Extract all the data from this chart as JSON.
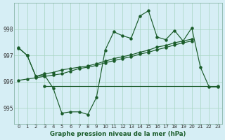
{
  "title": "Graphe pression niveau de la mer (hPa)",
  "bg_color": "#d6eef5",
  "grid_color": "#a8d5c2",
  "line_color": "#1a5c2a",
  "xlim": [
    -0.5,
    23.5
  ],
  "ylim": [
    994.4,
    999.0
  ],
  "yticks": [
    995,
    996,
    997,
    998
  ],
  "xtick_labels": [
    "0",
    "1",
    "2",
    "3",
    "4",
    "5",
    "6",
    "7",
    "8",
    "9",
    "10",
    "11",
    "12",
    "13",
    "14",
    "15",
    "16",
    "17",
    "18",
    "19",
    "20",
    "21",
    "22",
    "23"
  ],
  "main_line_x": [
    0,
    1,
    2,
    3,
    4,
    5,
    6,
    7,
    8,
    9,
    10,
    11,
    12,
    13,
    14,
    15,
    16,
    17,
    18,
    19,
    20,
    21,
    22,
    23
  ],
  "main_line_y": [
    997.3,
    997.0,
    996.2,
    996.25,
    995.75,
    994.8,
    994.85,
    994.85,
    994.75,
    995.4,
    997.2,
    997.9,
    997.75,
    997.65,
    998.5,
    998.7,
    997.7,
    997.6,
    997.95,
    997.55,
    998.05,
    996.55,
    995.8,
    995.8
  ],
  "flat_line_x": [
    3,
    23
  ],
  "flat_line_y": [
    995.82,
    995.82
  ],
  "trend_line1_x": [
    0,
    1,
    2,
    3,
    4,
    5,
    6,
    7,
    8,
    9,
    10,
    11,
    12,
    13,
    14,
    15,
    16,
    17,
    18,
    19,
    20
  ],
  "trend_line1_y": [
    996.05,
    996.1,
    996.15,
    996.2,
    996.25,
    996.3,
    996.4,
    996.5,
    996.55,
    996.62,
    996.72,
    996.8,
    996.88,
    996.95,
    997.05,
    997.12,
    997.22,
    997.3,
    997.4,
    997.48,
    997.55
  ],
  "trend_line2_x": [
    0,
    1,
    2,
    3,
    4,
    5,
    6,
    7,
    8,
    9,
    10,
    11,
    12,
    13,
    14,
    15,
    16,
    17,
    18,
    19,
    20
  ],
  "trend_line2_y": [
    997.28,
    997.0,
    996.2,
    996.3,
    996.35,
    996.45,
    996.5,
    996.55,
    996.6,
    996.68,
    996.78,
    996.88,
    996.95,
    997.02,
    997.12,
    997.2,
    997.32,
    997.38,
    997.48,
    997.55,
    997.62
  ]
}
